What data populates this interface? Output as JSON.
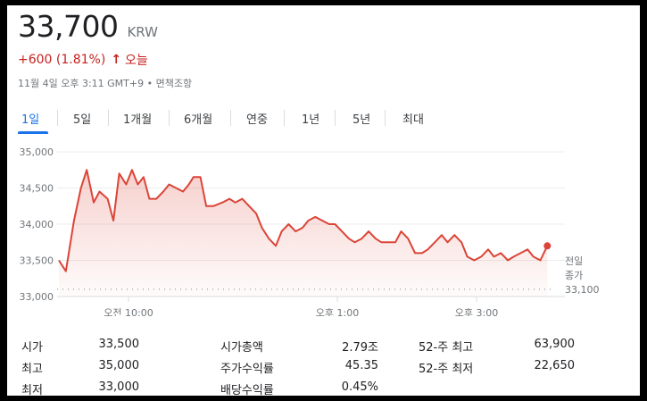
{
  "quote": {
    "price": "33,700",
    "currency": "KRW",
    "change": "+600 (1.81%)",
    "change_arrow": "↑",
    "period": "오늘",
    "timestamp": "11월 4일 오후 3:11 GMT+9",
    "disclaimer": "면책조항",
    "accent_color": "#c5221f"
  },
  "tabs": [
    "1일",
    "5일",
    "1개월",
    "6개월",
    "연중",
    "1년",
    "5년",
    "최대"
  ],
  "active_tab": "1일",
  "chart_data": {
    "type": "area",
    "y_ticks": [
      "35,000",
      "34,500",
      "34,000",
      "33,500",
      "33,000"
    ],
    "ylim": [
      33000,
      35000
    ],
    "x_ticks": [
      "오전 10:00",
      "오후 1:00",
      "오후 3:00"
    ],
    "x_tick_minutes": [
      60,
      240,
      360
    ],
    "prev_close_label_1": "전일",
    "prev_close_label_2": "종가",
    "prev_close": "33,100",
    "prev_close_value": 33100,
    "line_color": "#db4437",
    "points": [
      [
        0,
        33500
      ],
      [
        6,
        33350
      ],
      [
        13,
        34050
      ],
      [
        19,
        34500
      ],
      [
        24,
        34750
      ],
      [
        30,
        34300
      ],
      [
        35,
        34450
      ],
      [
        42,
        34350
      ],
      [
        47,
        34050
      ],
      [
        52,
        34700
      ],
      [
        58,
        34550
      ],
      [
        63,
        34750
      ],
      [
        68,
        34550
      ],
      [
        73,
        34650
      ],
      [
        78,
        34350
      ],
      [
        84,
        34350
      ],
      [
        90,
        34450
      ],
      [
        95,
        34550
      ],
      [
        101,
        34500
      ],
      [
        107,
        34450
      ],
      [
        112,
        34550
      ],
      [
        116,
        34650
      ],
      [
        122,
        34650
      ],
      [
        127,
        34250
      ],
      [
        133,
        34250
      ],
      [
        141,
        34300
      ],
      [
        147,
        34350
      ],
      [
        152,
        34300
      ],
      [
        158,
        34350
      ],
      [
        164,
        34250
      ],
      [
        170,
        34150
      ],
      [
        175,
        33950
      ],
      [
        181,
        33800
      ],
      [
        187,
        33700
      ],
      [
        192,
        33900
      ],
      [
        198,
        34000
      ],
      [
        204,
        33900
      ],
      [
        210,
        33950
      ],
      [
        215,
        34050
      ],
      [
        221,
        34100
      ],
      [
        227,
        34050
      ],
      [
        233,
        34000
      ],
      [
        238,
        34000
      ],
      [
        244,
        33900
      ],
      [
        250,
        33800
      ],
      [
        255,
        33750
      ],
      [
        261,
        33800
      ],
      [
        267,
        33900
      ],
      [
        273,
        33800
      ],
      [
        278,
        33750
      ],
      [
        284,
        33750
      ],
      [
        290,
        33750
      ],
      [
        295,
        33900
      ],
      [
        301,
        33800
      ],
      [
        307,
        33600
      ],
      [
        313,
        33600
      ],
      [
        318,
        33650
      ],
      [
        324,
        33750
      ],
      [
        330,
        33850
      ],
      [
        335,
        33750
      ],
      [
        341,
        33850
      ],
      [
        347,
        33750
      ],
      [
        352,
        33550
      ],
      [
        358,
        33500
      ],
      [
        364,
        33550
      ],
      [
        370,
        33650
      ],
      [
        375,
        33550
      ],
      [
        381,
        33600
      ],
      [
        387,
        33500
      ],
      [
        392,
        33550
      ],
      [
        398,
        33600
      ],
      [
        404,
        33650
      ],
      [
        409,
        33550
      ],
      [
        415,
        33500
      ],
      [
        421,
        33700
      ]
    ]
  },
  "stats": {
    "col1": [
      {
        "label": "시가",
        "value": "33,500"
      },
      {
        "label": "최고",
        "value": "35,000"
      },
      {
        "label": "최저",
        "value": "33,000"
      }
    ],
    "col2": [
      {
        "label": "시가총액",
        "value": "2.79조"
      },
      {
        "label": "주가수익률",
        "value": "45.35"
      },
      {
        "label": "배당수익률",
        "value": "0.45%"
      }
    ],
    "col3": [
      {
        "label": "52-주 최고",
        "value": "63,900"
      },
      {
        "label": "52-주 최저",
        "value": "22,650"
      }
    ]
  }
}
